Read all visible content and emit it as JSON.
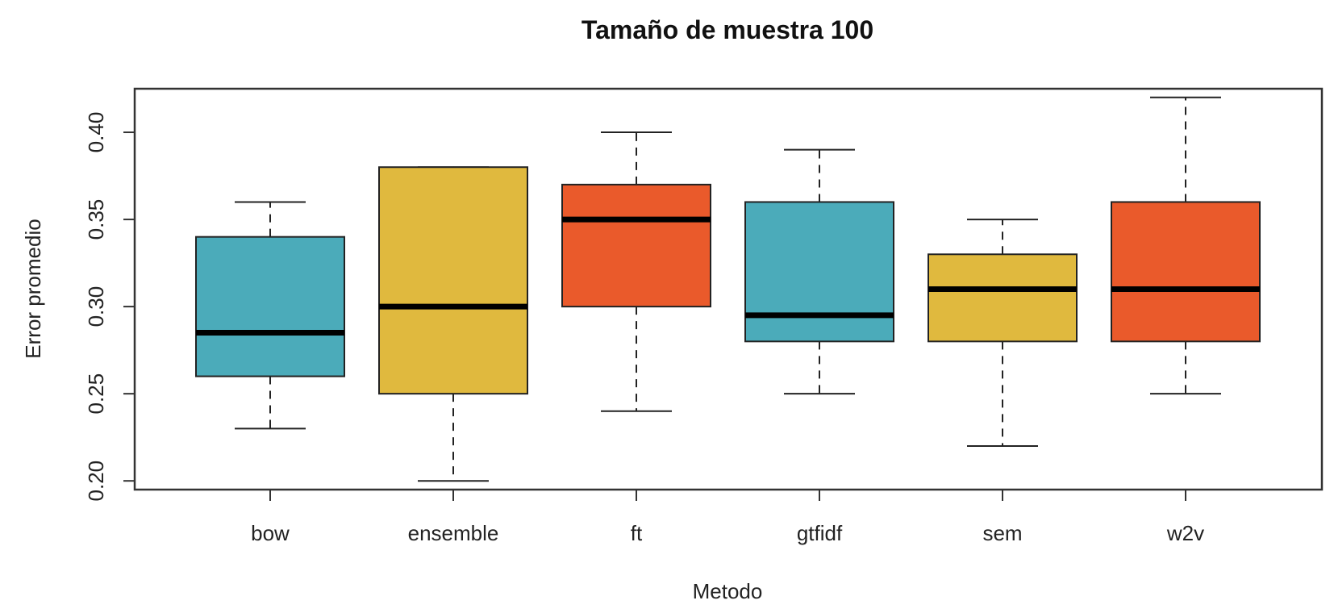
{
  "chart_data": {
    "type": "boxplot",
    "title": "Tamaño de muestra  100",
    "xlabel": "Metodo",
    "ylabel": "Error promedio",
    "ylim": [
      0.195,
      0.425
    ],
    "yticks": [
      "0.20",
      "0.25",
      "0.30",
      "0.35",
      "0.40"
    ],
    "grid": false,
    "categories": [
      "bow",
      "ensemble",
      "ft",
      "gtfidf",
      "sem",
      "w2v"
    ],
    "boxes": [
      {
        "name": "bow",
        "min": 0.23,
        "q1": 0.26,
        "median": 0.285,
        "q3": 0.34,
        "max": 0.36,
        "color": "#4BABBA"
      },
      {
        "name": "ensemble",
        "min": 0.2,
        "q1": 0.25,
        "median": 0.3,
        "q3": 0.38,
        "max": 0.38,
        "color": "#E0B93E"
      },
      {
        "name": "ft",
        "min": 0.24,
        "q1": 0.3,
        "median": 0.35,
        "q3": 0.37,
        "max": 0.4,
        "color": "#EA5A2B"
      },
      {
        "name": "gtfidf",
        "min": 0.25,
        "q1": 0.28,
        "median": 0.295,
        "q3": 0.36,
        "max": 0.39,
        "color": "#4BABBA"
      },
      {
        "name": "sem",
        "min": 0.22,
        "q1": 0.28,
        "median": 0.31,
        "q3": 0.33,
        "max": 0.35,
        "color": "#E0B93E"
      },
      {
        "name": "w2v",
        "min": 0.25,
        "q1": 0.28,
        "median": 0.31,
        "q3": 0.36,
        "max": 0.42,
        "color": "#EA5A2B"
      }
    ]
  }
}
